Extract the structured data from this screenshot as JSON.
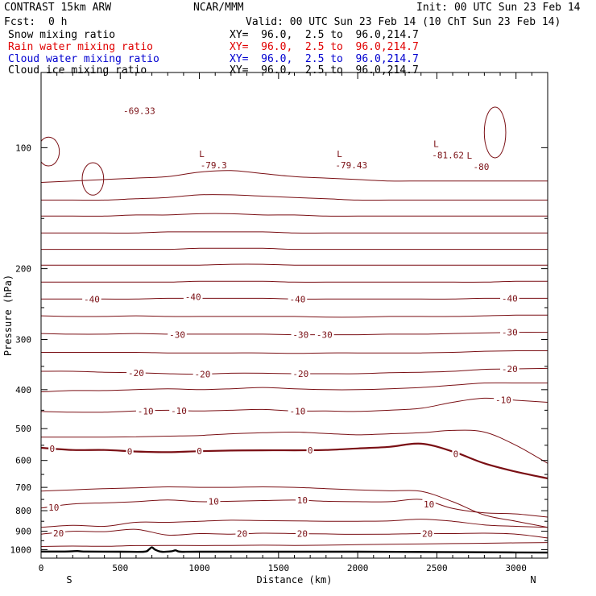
{
  "header": {
    "model": "CONTRAST 15km ARW",
    "org": "NCAR/MMM",
    "init": "Init: 00 UTC Sun 23 Feb 14",
    "fcst_label": "Fcst:",
    "fcst_value": "0 h",
    "valid": "Valid: 00 UTC Sun 23 Feb 14 (10 ChT Sun 23 Feb 14)",
    "fields": [
      {
        "name": "Snow mixing ratio",
        "xy": "XY=  96.0,  2.5 to  96.0,214.7",
        "color": "#000000"
      },
      {
        "name": "Rain water mixing ratio",
        "xy": "XY=  96.0,  2.5 to  96.0,214.7",
        "color": "#e00000"
      },
      {
        "name": "Cloud water mixing ratio",
        "xy": "XY=  96.0,  2.5 to  96.0,214.7",
        "color": "#0000d0"
      },
      {
        "name": "Cloud ice mixing ratio",
        "xy": "XY=  96.0,  2.5 to  96.0,214.7",
        "color": "#000000"
      }
    ]
  },
  "chart_data": {
    "type": "line",
    "xlabel": "Distance (km)",
    "ylabel": "Pressure (hPa)",
    "xlim": [
      0,
      3200
    ],
    "ylim": [
      1050,
      65
    ],
    "x_ticks": [
      0,
      500,
      1000,
      1500,
      2000,
      2500,
      3000
    ],
    "y_ticks": [
      100,
      200,
      300,
      400,
      500,
      600,
      700,
      800,
      900,
      1000
    ],
    "x_end_labels": {
      "left": "S",
      "right": "N"
    },
    "line_color": "#7a0f14",
    "contour_x": [
      0,
      200,
      400,
      600,
      800,
      1000,
      1200,
      1400,
      1600,
      1800,
      2000,
      2200,
      2400,
      2600,
      2800,
      3000,
      3200
    ],
    "contours": [
      {
        "value": 25,
        "p": [
          982,
          980,
          981,
          977,
          976,
          977,
          976,
          975,
          976,
          975,
          972,
          970,
          968,
          966,
          964,
          962,
          960
        ]
      },
      {
        "value": 20,
        "p": [
          915,
          900,
          902,
          890,
          920,
          912,
          915,
          910,
          912,
          914,
          916,
          915,
          912,
          912,
          910,
          915,
          935
        ]
      },
      {
        "value": 15,
        "p": [
          880,
          870,
          875,
          855,
          855,
          850,
          845,
          847,
          848,
          850,
          850,
          848,
          840,
          850,
          868,
          875,
          880
        ]
      },
      {
        "value": 10,
        "p": [
          788,
          770,
          765,
          760,
          752,
          760,
          758,
          755,
          753,
          758,
          760,
          760,
          750,
          790,
          810,
          815,
          830
        ]
      },
      {
        "value": 5,
        "p": [
          715,
          710,
          705,
          702,
          698,
          700,
          700,
          698,
          700,
          705,
          710,
          714,
          716,
          760,
          820,
          850,
          880
        ]
      },
      {
        "value": 0,
        "p": [
          558,
          565,
          565,
          570,
          572,
          569,
          567,
          566,
          566,
          565,
          560,
          555,
          545,
          570,
          610,
          640,
          665
        ]
      },
      {
        "value": -5,
        "p": [
          525,
          525,
          525,
          524,
          522,
          520,
          515,
          512,
          510,
          514,
          518,
          515,
          512,
          505,
          510,
          550,
          610
        ]
      },
      {
        "value": -10,
        "p": [
          453,
          455,
          455,
          452,
          450,
          452,
          450,
          448,
          452,
          452,
          453,
          450,
          445,
          430,
          420,
          425,
          430
        ]
      },
      {
        "value": -15,
        "p": [
          405,
          402,
          402,
          400,
          398,
          400,
          398,
          395,
          398,
          400,
          400,
          398,
          395,
          390,
          385,
          385,
          385
        ]
      },
      {
        "value": -20,
        "p": [
          360,
          360,
          362,
          363,
          365,
          366,
          364,
          364,
          365,
          365,
          365,
          363,
          362,
          360,
          356,
          355,
          354
        ]
      },
      {
        "value": -25,
        "p": [
          323,
          323,
          323,
          323,
          324,
          324,
          324,
          324,
          325,
          324,
          324,
          324,
          324,
          323,
          321,
          320,
          320
        ]
      },
      {
        "value": -30,
        "p": [
          290,
          291,
          291,
          290,
          291,
          291,
          291,
          291,
          292,
          292,
          292,
          291,
          291,
          290,
          289,
          288,
          288
        ]
      },
      {
        "value": -35,
        "p": [
          262,
          263,
          263,
          262,
          263,
          263,
          263,
          263,
          263,
          264,
          264,
          263,
          263,
          263,
          262,
          261,
          261
        ]
      },
      {
        "value": -40,
        "p": [
          238,
          238,
          238,
          238,
          237,
          237,
          237,
          237,
          238,
          238,
          238,
          238,
          238,
          238,
          237,
          237,
          237
        ]
      },
      {
        "value": -45,
        "p": [
          216,
          216,
          216,
          216,
          216,
          215,
          215,
          215,
          216,
          216,
          216,
          216,
          216,
          216,
          216,
          215,
          215
        ]
      },
      {
        "value": -50,
        "p": [
          196,
          196,
          196,
          196,
          196,
          196,
          195,
          195,
          196,
          196,
          196,
          196,
          196,
          196,
          196,
          196,
          196
        ]
      },
      {
        "value": -55,
        "p": [
          179,
          179,
          179,
          179,
          179,
          178,
          178,
          178,
          179,
          179,
          179,
          179,
          179,
          179,
          179,
          179,
          179
        ]
      },
      {
        "value": -60,
        "p": [
          163,
          163,
          163,
          163,
          162,
          162,
          162,
          162,
          163,
          163,
          163,
          163,
          163,
          163,
          163,
          163,
          163
        ]
      },
      {
        "value": -65,
        "p": [
          148,
          148,
          148,
          147,
          147,
          146,
          146,
          147,
          147,
          148,
          148,
          148,
          148,
          148,
          148,
          148,
          148
        ]
      },
      {
        "value": -70,
        "p": [
          135,
          135,
          135,
          134,
          133,
          131,
          131,
          132,
          133,
          134,
          135,
          135,
          135,
          135,
          135,
          135,
          135
        ]
      },
      {
        "value": -75,
        "p": [
          122,
          121,
          120,
          119,
          118,
          115,
          114,
          116,
          118,
          119,
          120,
          121,
          121,
          121,
          121,
          121,
          121
        ]
      }
    ],
    "contour_labels": [
      {
        "text": "-69.33",
        "x": 620,
        "p": 81
      },
      {
        "text": "-40",
        "x": 320,
        "p": 238
      },
      {
        "text": "-40",
        "x": 960,
        "p": 235
      },
      {
        "text": "-40",
        "x": 1620,
        "p": 238
      },
      {
        "text": "-40",
        "x": 2960,
        "p": 237
      },
      {
        "text": "-30",
        "x": 860,
        "p": 292
      },
      {
        "text": "-30",
        "x": 1640,
        "p": 292
      },
      {
        "text": "-30",
        "x": 1790,
        "p": 292
      },
      {
        "text": "-30",
        "x": 2960,
        "p": 288
      },
      {
        "text": "-20",
        "x": 600,
        "p": 363
      },
      {
        "text": "-20",
        "x": 1020,
        "p": 366
      },
      {
        "text": "-20",
        "x": 1640,
        "p": 365
      },
      {
        "text": "-20",
        "x": 2960,
        "p": 355
      },
      {
        "text": "-10",
        "x": 660,
        "p": 452
      },
      {
        "text": "-10",
        "x": 870,
        "p": 451
      },
      {
        "text": "-10",
        "x": 1620,
        "p": 452
      },
      {
        "text": "-10",
        "x": 2920,
        "p": 424
      },
      {
        "text": "0",
        "x": 70,
        "p": 560
      },
      {
        "text": "0",
        "x": 560,
        "p": 570
      },
      {
        "text": "0",
        "x": 1000,
        "p": 569
      },
      {
        "text": "0",
        "x": 1700,
        "p": 566
      },
      {
        "text": "0",
        "x": 2620,
        "p": 578
      },
      {
        "text": "10",
        "x": 80,
        "p": 785
      },
      {
        "text": "10",
        "x": 1090,
        "p": 758
      },
      {
        "text": "10",
        "x": 1650,
        "p": 753
      },
      {
        "text": "10",
        "x": 2450,
        "p": 770
      },
      {
        "text": "20",
        "x": 110,
        "p": 910
      },
      {
        "text": "20",
        "x": 1270,
        "p": 913
      },
      {
        "text": "20",
        "x": 1650,
        "p": 912
      },
      {
        "text": "20",
        "x": 2440,
        "p": 912
      }
    ],
    "lows": [
      {
        "text": "-79.3",
        "x": 1090,
        "p": 107
      },
      {
        "text": "-79.43",
        "x": 1960,
        "p": 107
      },
      {
        "text": "-81.62",
        "x": 2570,
        "p": 101
      },
      {
        "text": "-80",
        "x": 2780,
        "p": 108
      }
    ],
    "terrain": {
      "x": [
        0,
        150,
        230,
        280,
        500,
        650,
        680,
        700,
        720,
        760,
        820,
        850,
        880,
        1000,
        1500,
        2000,
        2500,
        3000,
        3200
      ],
      "p": [
        1011,
        1011,
        1008,
        1011,
        1012,
        1012,
        1000,
        987,
        1000,
        1012,
        1010,
        1004,
        1012,
        1012,
        1012,
        1012,
        1014,
        1016,
        1017
      ]
    }
  }
}
